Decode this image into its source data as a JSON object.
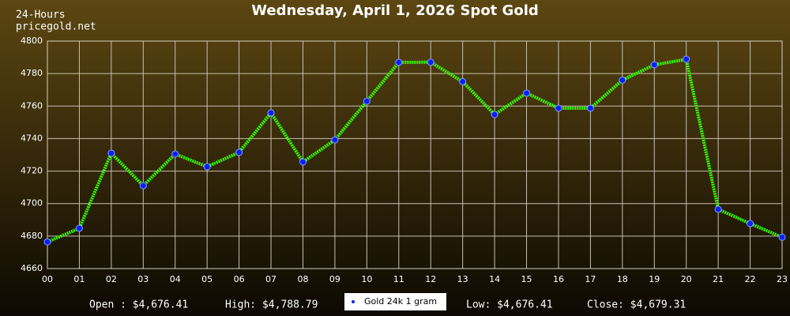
{
  "chart_data": {
    "type": "line",
    "title": "Wednesday, April 1, 2026 Spot Gold",
    "corner_label": "24-Hours",
    "site": "pricegold.net",
    "categories": [
      "00",
      "01",
      "02",
      "03",
      "04",
      "05",
      "06",
      "07",
      "08",
      "09",
      "10",
      "11",
      "12",
      "13",
      "14",
      "15",
      "16",
      "17",
      "18",
      "19",
      "20",
      "21",
      "22",
      "23"
    ],
    "series": [
      {
        "name": "Gold 24k 1 gram",
        "color": "#33ff00",
        "marker_color": "#0022ff",
        "values": [
          4676.41,
          4684.8,
          4731,
          4711,
          4730.5,
          4722.7,
          4731.5,
          4755.8,
          4725.6,
          4739.2,
          4763,
          4786.9,
          4787,
          4775,
          4754.8,
          4768,
          4758.7,
          4758.7,
          4776,
          4785.4,
          4788.79,
          4696.5,
          4687.7,
          4679.31
        ]
      }
    ],
    "ylim": [
      4660,
      4800
    ],
    "yticks": [
      4660,
      4680,
      4700,
      4720,
      4740,
      4760,
      4780,
      4800
    ],
    "grid": true,
    "footer": {
      "open": "Open : $4,676.41",
      "high": "High: $4,788.79",
      "low": "Low: $4,676.41",
      "close": "Close: $4,679.31"
    }
  }
}
